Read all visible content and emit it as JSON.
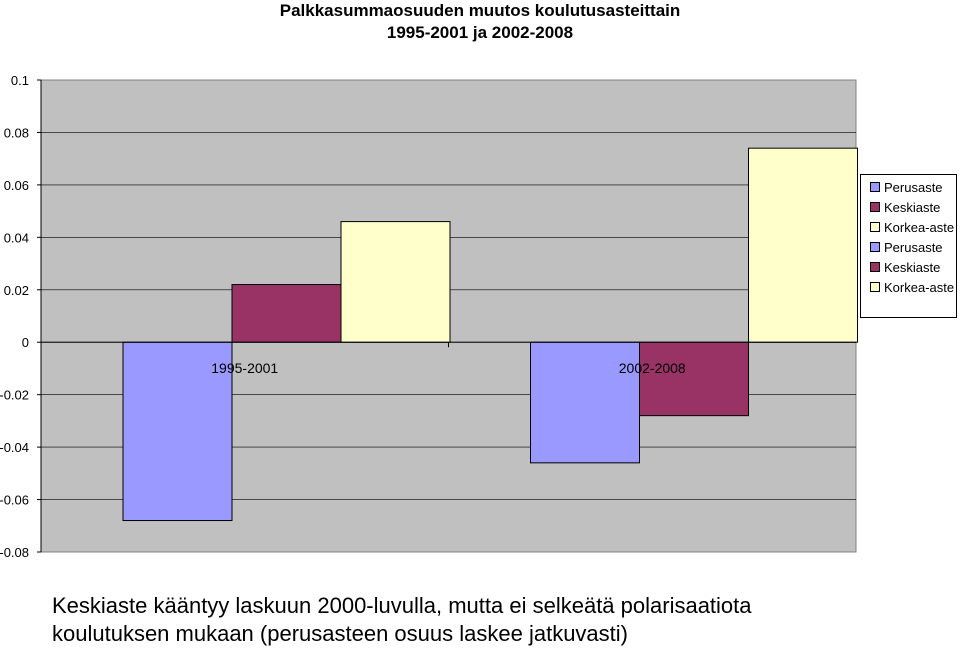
{
  "chart_data": {
    "type": "bar",
    "title": "Palkkasummaosuuden muutos koulutusasteittain",
    "subtitle": "1995-2001 ja 2002-2008",
    "categories": [
      "1995-2001",
      "2002-2008"
    ],
    "series": [
      {
        "name": "Perusaste",
        "color": "#9999ff",
        "values": [
          -0.068,
          -0.046
        ]
      },
      {
        "name": "Keskiaste",
        "color": "#993366",
        "values": [
          0.022,
          -0.028
        ]
      },
      {
        "name": "Korkea-aste",
        "color": "#ffffcc",
        "values": [
          0.046,
          0.074
        ]
      }
    ],
    "ylim": [
      -0.08,
      0.1
    ],
    "yticks": [
      "0.1",
      "0.08",
      "0.06",
      "0.04",
      "0.02",
      "0",
      "-0.02",
      "-0.04",
      "-0.06",
      "-0.08"
    ],
    "legend_entries": [
      "Perusaste",
      "Keskiaste",
      "Korkea-aste",
      "Perusaste",
      "Keskiaste",
      "Korkea-aste"
    ],
    "legend_colors": [
      "#9999ff",
      "#993366",
      "#ffffcc",
      "#9999ff",
      "#993366",
      "#ffffcc"
    ],
    "legend_position": "right",
    "grid": true,
    "plot_background": "#c0c0c0"
  },
  "caption": {
    "line1": "Keskiaste kääntyy laskuun 2000-luvulla, mutta ei selkeätä polarisaatiota",
    "line2": "koulutuksen mukaan (perusasteen osuus laskee jatkuvasti)"
  }
}
